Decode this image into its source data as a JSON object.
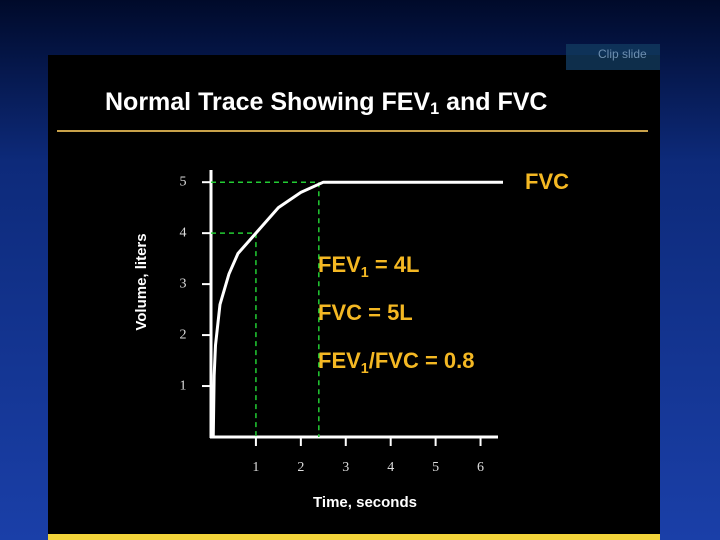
{
  "chart_data": {
    "type": "line",
    "title_parts": [
      "Normal Trace Showing FEV",
      "1",
      " and FVC"
    ],
    "x_label": "Time, seconds",
    "y_label": "Volume, liters",
    "x": [
      0.05,
      0.07,
      0.1,
      0.2,
      0.4,
      0.6,
      1,
      1.5,
      2,
      2.5,
      3,
      6.5
    ],
    "series": [
      {
        "color": "#ffffff",
        "values": [
          0,
          1.2,
          1.8,
          2.6,
          3.2,
          3.6,
          4,
          4.5,
          4.8,
          5,
          5,
          5
        ]
      }
    ],
    "xlim": [
      0,
      6.5
    ],
    "ylim": [
      0,
      5.2
    ],
    "xticks": [
      1,
      2,
      3,
      4,
      5,
      6
    ],
    "yticks": [
      1,
      2,
      3,
      4,
      5
    ],
    "guides": [
      {
        "x": 1,
        "y": 4
      },
      {
        "x": 2.4,
        "y": 5
      }
    ],
    "guide_color": "#22cc33",
    "end_label": "FVC",
    "annotations": [
      [
        "FEV",
        "1",
        " = 4L"
      ],
      [
        "FVC  = 5L"
      ],
      [
        "FEV",
        "1",
        "/FVC = 0.8"
      ]
    ]
  },
  "clip_slide": "Clip slide"
}
